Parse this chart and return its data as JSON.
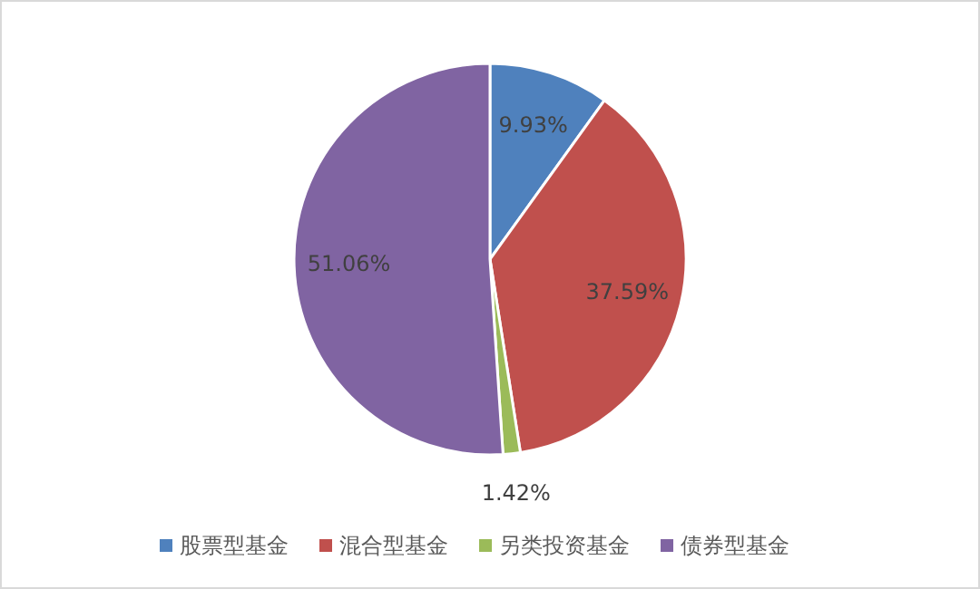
{
  "chart_data": {
    "type": "pie",
    "categories": [
      "股票型基金",
      "混合型基金",
      "另类投资基金",
      "债券型基金"
    ],
    "values": [
      9.93,
      37.59,
      1.42,
      51.06
    ],
    "value_labels": [
      "9.93%",
      "37.59%",
      "1.42%",
      "51.06%"
    ],
    "colors": [
      "#4f81bd",
      "#c0504d",
      "#9bbb59",
      "#8064a2"
    ],
    "legend": "bottom"
  }
}
